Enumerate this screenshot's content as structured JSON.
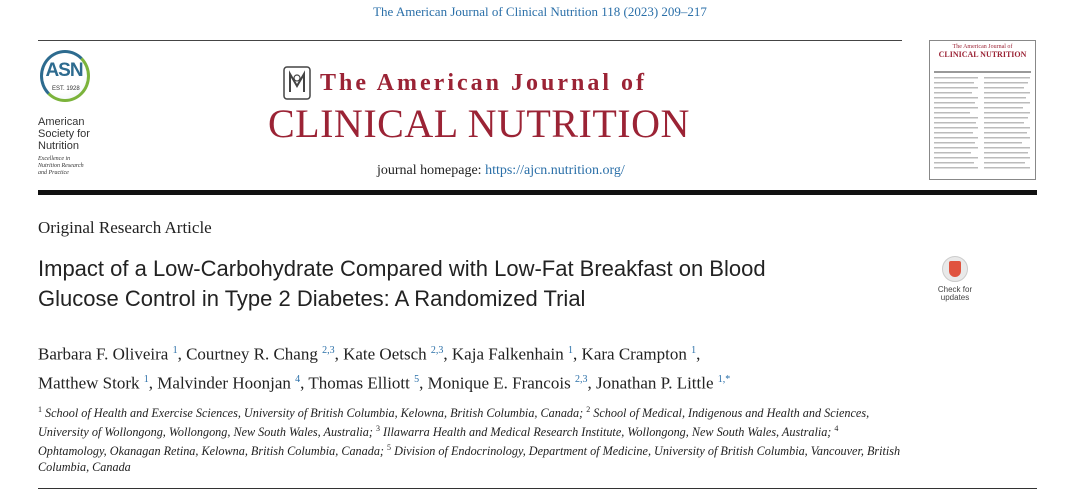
{
  "citation": "The American Journal of Clinical Nutrition 118 (2023) 209–217",
  "asn": {
    "logo_text": "ASN",
    "est": "EST. 1928",
    "name_lines": [
      "American",
      "Society for",
      "Nutrition"
    ],
    "tagline_lines": [
      "Excellence in",
      "Nutrition Research",
      "and Practice"
    ]
  },
  "journal": {
    "line1": "The American Journal of",
    "line2": "CLINICAL NUTRITION",
    "homepage_label": "journal homepage: ",
    "homepage_url": "https://ajcn.nutrition.org/"
  },
  "cover": {
    "header": "The American Journal of",
    "title": "CLINICAL NUTRITION"
  },
  "article": {
    "type": "Original Research Article",
    "title_lines": [
      "Impact of a Low-Carbohydrate Compared with Low-Fat Breakfast on Blood",
      "Glucose Control in Type 2 Diabetes: A Randomized Trial"
    ]
  },
  "check_updates": {
    "line1": "Check for",
    "line2": "updates"
  },
  "authors": [
    {
      "name": "Barbara F. Oliveira",
      "aff": "1"
    },
    {
      "name": "Courtney R. Chang",
      "aff": "2,3"
    },
    {
      "name": "Kate Oetsch",
      "aff": "2,3"
    },
    {
      "name": "Kaja Falkenhain",
      "aff": "1"
    },
    {
      "name": "Kara Crampton",
      "aff": "1"
    },
    {
      "name": "Matthew Stork",
      "aff": "1"
    },
    {
      "name": "Malvinder Hoonjan",
      "aff": "4"
    },
    {
      "name": "Thomas Elliott",
      "aff": "5"
    },
    {
      "name": "Monique E. Francois",
      "aff": "2,3"
    },
    {
      "name": "Jonathan P. Little",
      "aff": "1,*"
    }
  ],
  "affiliations": [
    {
      "num": "1",
      "text": "School of Health and Exercise Sciences, University of British Columbia, Kelowna, British Columbia, Canada;"
    },
    {
      "num": "2",
      "text": "School of Medical, Indigenous and Health and Sciences, University of Wollongong, Wollongong, New South Wales, Australia;"
    },
    {
      "num": "3",
      "text": "Illawarra Health and Medical Research Institute, Wollongong, New South Wales, Australia;"
    },
    {
      "num": "4",
      "text": "Ophtamology, Okanagan Retina, Kelowna, British Columbia, Canada;"
    },
    {
      "num": "5",
      "text": "Division of Endocrinology, Department of Medicine, University of British Columbia, Vancouver, British Columbia, Canada"
    }
  ],
  "colors": {
    "journal_red": "#9b2335",
    "link_blue": "#2a6fa8",
    "asn_blue": "#2d6b8f",
    "asn_green": "#7bb33b"
  }
}
